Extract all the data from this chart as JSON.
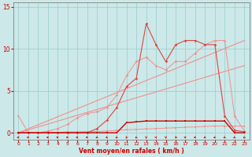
{
  "x": [
    0,
    1,
    2,
    3,
    4,
    5,
    6,
    7,
    8,
    9,
    10,
    11,
    12,
    13,
    14,
    15,
    16,
    17,
    18,
    19,
    20,
    21,
    22,
    23
  ],
  "line_spiky_light": [
    0,
    0,
    0,
    0.2,
    0.5,
    1.0,
    1.8,
    2.3,
    2.5,
    3.0,
    4.5,
    6.8,
    8.5,
    9.0,
    8.0,
    7.5,
    8.5,
    8.5,
    9.5,
    10.5,
    11.0,
    11.0,
    2.0,
    0.2
  ],
  "line_spiky_dark": [
    0,
    0,
    0,
    0,
    0,
    0,
    0,
    0,
    0.5,
    1.5,
    3.0,
    5.5,
    6.5,
    13.0,
    10.5,
    8.5,
    10.5,
    11.0,
    11.0,
    10.5,
    10.5,
    2.0,
    0.3,
    0.1
  ],
  "line_flat_light": [
    2,
    0,
    0,
    0,
    0.05,
    0.1,
    0.1,
    0.15,
    0.15,
    0.2,
    0.3,
    0.35,
    0.4,
    0.45,
    0.5,
    0.55,
    0.6,
    0.65,
    0.7,
    0.75,
    0.8,
    0.8,
    0.8,
    0.8
  ],
  "line_flat_dark": [
    0,
    0,
    0,
    0,
    0,
    0,
    0,
    0,
    0,
    0,
    0,
    1.2,
    1.3,
    1.4,
    1.4,
    1.4,
    1.4,
    1.4,
    1.4,
    1.4,
    1.4,
    1.4,
    0,
    0
  ],
  "linear_upper": [
    0,
    0.48,
    0.96,
    1.43,
    1.91,
    2.39,
    2.87,
    3.35,
    3.83,
    4.3,
    4.78,
    5.26,
    5.74,
    6.22,
    6.7,
    7.17,
    7.65,
    8.13,
    8.61,
    9.09,
    9.57,
    10.04,
    10.52,
    11.0
  ],
  "linear_lower": [
    0,
    0.35,
    0.7,
    1.04,
    1.39,
    1.74,
    2.09,
    2.43,
    2.78,
    3.13,
    3.48,
    3.83,
    4.17,
    4.52,
    4.87,
    5.22,
    5.57,
    5.91,
    6.26,
    6.61,
    6.96,
    7.3,
    7.65,
    8.0
  ],
  "bg_color": "#cce8e8",
  "grid_color": "#99cccc",
  "color_light": "#f09090",
  "color_medium": "#dd4444",
  "color_dark": "#cc0000",
  "xlabel": "Vent moyen/en rafales ( km/h )",
  "ylim": [
    -0.8,
    15.5
  ],
  "xlim": [
    -0.5,
    23.5
  ],
  "yticks": [
    0,
    5,
    10,
    15
  ],
  "xticks": [
    0,
    1,
    2,
    3,
    4,
    5,
    6,
    7,
    8,
    9,
    10,
    11,
    12,
    13,
    14,
    15,
    16,
    17,
    18,
    19,
    20,
    21,
    22,
    23
  ]
}
